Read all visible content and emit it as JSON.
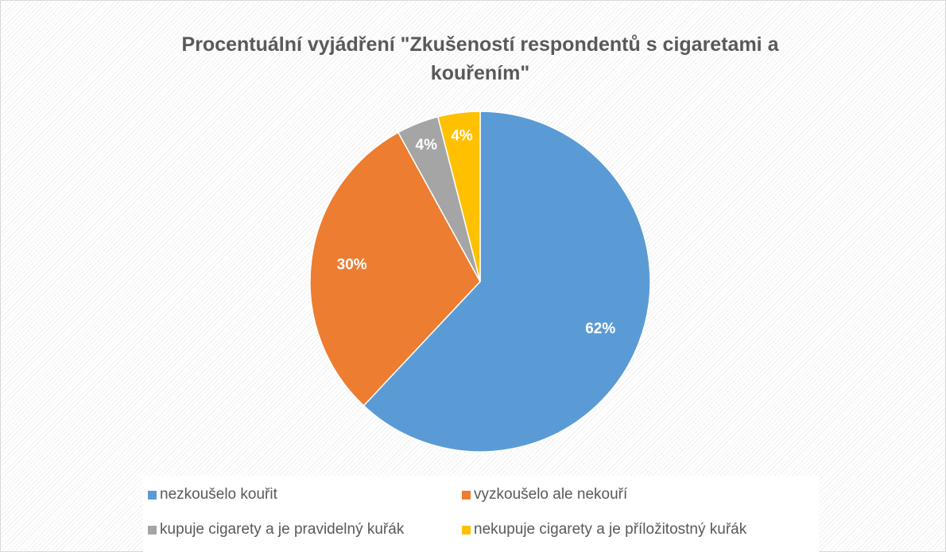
{
  "chart_data": {
    "type": "pie",
    "title": "Procentuální vyjádření \"Zkušeností respondentů s cigaretami a kouřením\"",
    "categories": [
      "nezkoušelo kouřit",
      "vyzkoušelo ale nekouří",
      "kupuje cigarety a je pravidelný kuřák",
      "nekupuje cigarety a je příložitostný kuřák"
    ],
    "values": [
      62,
      30,
      4,
      4
    ],
    "value_labels": [
      "62%",
      "30%",
      "4%",
      "4%"
    ],
    "colors": [
      "#5b9bd5",
      "#ed7d31",
      "#a5a5a5",
      "#ffc000"
    ],
    "legend": "bottom"
  }
}
